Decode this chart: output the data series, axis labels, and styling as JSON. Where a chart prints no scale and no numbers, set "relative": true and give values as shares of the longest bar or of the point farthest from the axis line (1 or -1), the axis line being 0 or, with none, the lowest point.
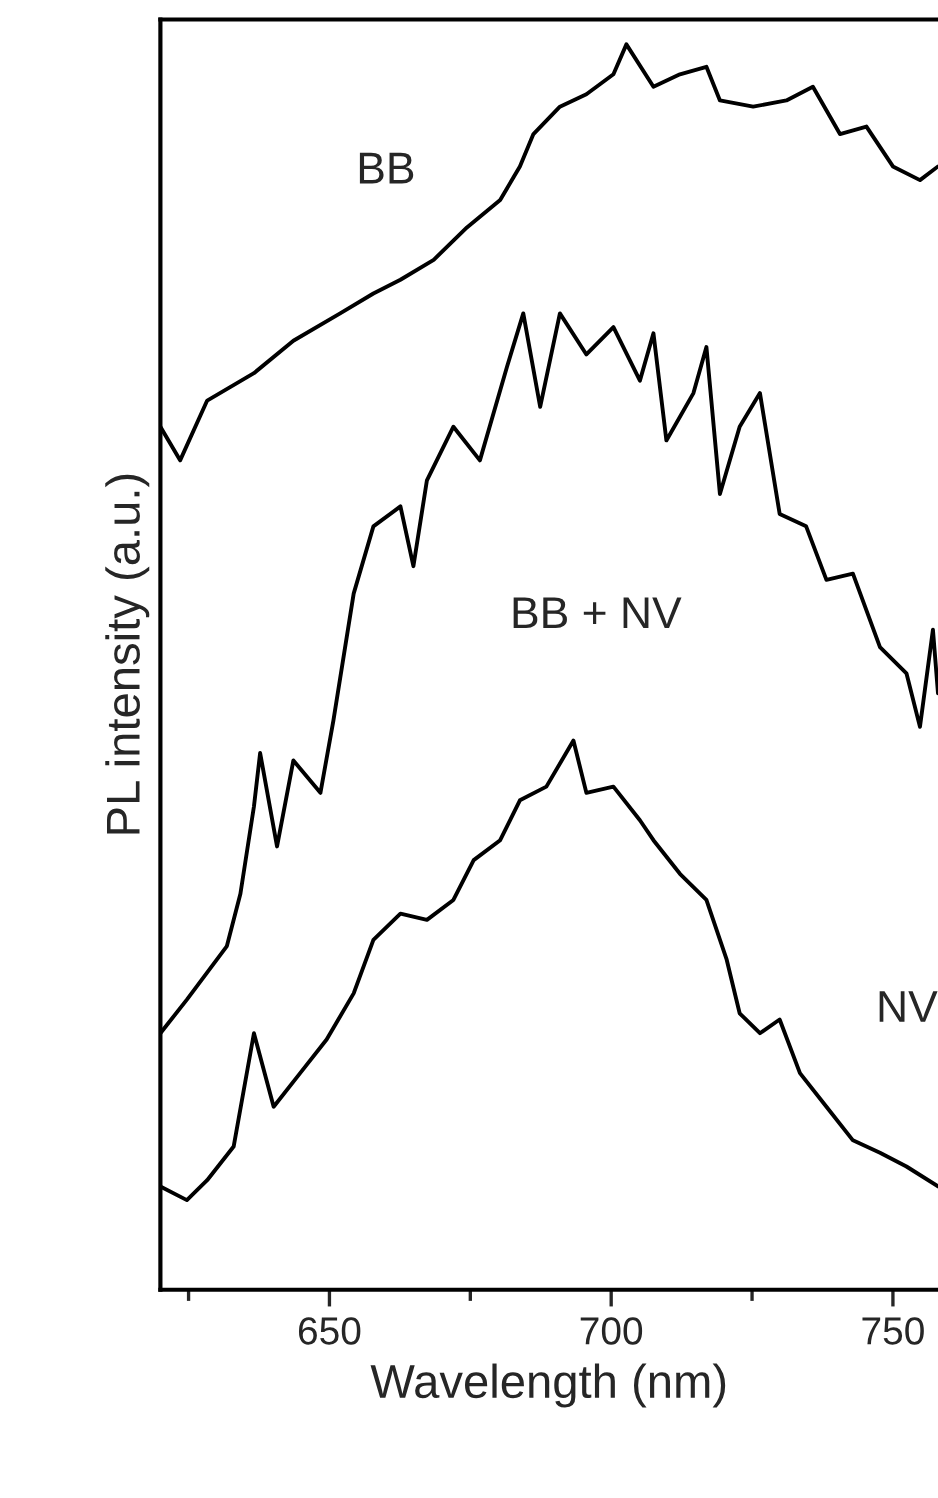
{
  "chart_data": {
    "type": "line",
    "xlabel": "Wavelength (nm)",
    "ylabel": "PL intensity (a.u.)",
    "relative": true,
    "xlim": [
      620,
      758
    ],
    "xticks": [
      650,
      700,
      750
    ],
    "legend": false,
    "grid": false,
    "series": [
      {
        "name": "BB",
        "color": "#000000",
        "x": [
          620.0,
          623.5,
          628.3,
          636.6,
          643.6,
          651.9,
          657.8,
          662.6,
          668.5,
          674.4,
          680.3,
          683.8,
          686.2,
          690.9,
          695.6,
          700.4,
          702.7,
          707.5,
          712.2,
          716.9,
          719.3,
          725.2,
          731.1,
          735.8,
          740.6,
          745.3,
          750.0,
          754.8,
          758.0
        ],
        "values": [
          0.693,
          0.666,
          0.714,
          0.736,
          0.762,
          0.784,
          0.8,
          0.811,
          0.827,
          0.853,
          0.875,
          0.902,
          0.928,
          0.95,
          0.96,
          0.976,
          1.0,
          0.966,
          0.976,
          0.982,
          0.955,
          0.95,
          0.955,
          0.966,
          0.928,
          0.934,
          0.902,
          0.891,
          0.902
        ]
      },
      {
        "name": "BB + NV",
        "color": "#000000",
        "x": [
          620.0,
          624.7,
          631.8,
          634.2,
          636.6,
          637.7,
          640.7,
          643.6,
          648.4,
          650.7,
          654.3,
          657.8,
          662.6,
          664.9,
          667.3,
          672.0,
          676.7,
          681.5,
          684.4,
          687.4,
          690.9,
          695.6,
          700.4,
          705.1,
          707.5,
          709.8,
          714.6,
          716.9,
          719.3,
          722.8,
          726.4,
          729.9,
          734.6,
          738.2,
          742.9,
          747.7,
          752.4,
          754.8,
          757.1,
          758.0
        ],
        "values": [
          0.206,
          0.233,
          0.276,
          0.318,
          0.388,
          0.431,
          0.356,
          0.425,
          0.399,
          0.457,
          0.559,
          0.613,
          0.629,
          0.581,
          0.65,
          0.693,
          0.666,
          0.741,
          0.784,
          0.709,
          0.784,
          0.751,
          0.773,
          0.73,
          0.768,
          0.682,
          0.72,
          0.757,
          0.639,
          0.693,
          0.72,
          0.623,
          0.613,
          0.57,
          0.575,
          0.516,
          0.495,
          0.452,
          0.53,
          0.479
        ]
      },
      {
        "name": "NV",
        "color": "#000000",
        "x": [
          620.0,
          624.7,
          628.3,
          633.0,
          636.6,
          640.1,
          644.8,
          649.5,
          654.3,
          657.8,
          662.6,
          667.3,
          672.0,
          675.6,
          680.3,
          683.8,
          688.5,
          693.3,
          695.6,
          700.4,
          705.1,
          707.5,
          712.2,
          716.9,
          720.5,
          722.8,
          726.4,
          729.9,
          733.5,
          738.2,
          742.9,
          747.7,
          752.4,
          758.0
        ],
        "values": [
          0.083,
          0.072,
          0.088,
          0.115,
          0.206,
          0.147,
          0.174,
          0.201,
          0.238,
          0.281,
          0.302,
          0.297,
          0.313,
          0.345,
          0.361,
          0.393,
          0.404,
          0.441,
          0.399,
          0.404,
          0.377,
          0.361,
          0.334,
          0.313,
          0.265,
          0.222,
          0.206,
          0.217,
          0.174,
          0.147,
          0.12,
          0.11,
          0.099,
          0.083
        ]
      }
    ]
  }
}
